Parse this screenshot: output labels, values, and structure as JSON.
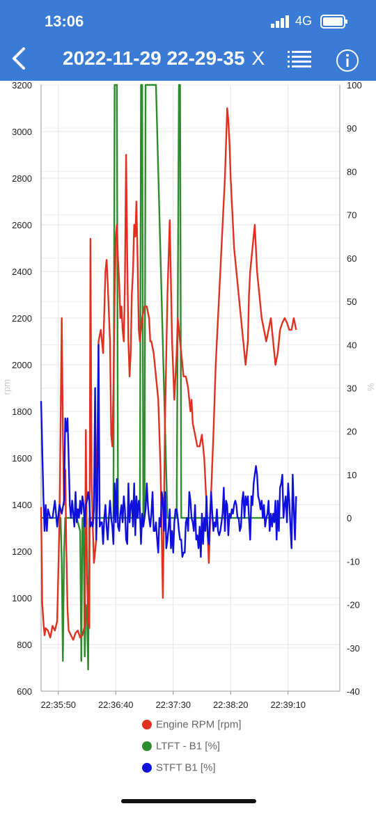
{
  "status_bar": {
    "time": "13:06",
    "network": "4G"
  },
  "header": {
    "title": "2022-11-29 22-29-35",
    "close_label": "X",
    "back_icon": "chevron-left-icon",
    "list_icon": "list-icon",
    "info_icon": "info-icon"
  },
  "colors": {
    "header": "#3a7bd5",
    "rpm": "#e03020",
    "ltft": "#2e8b2e",
    "stft": "#1010dd"
  },
  "chart_data": {
    "type": "line",
    "left_axis": {
      "label": "rpm",
      "range": [
        600,
        3200
      ],
      "ticks": [
        "600",
        "800",
        "1000",
        "1200",
        "1400",
        "1600",
        "1800",
        "2000",
        "2200",
        "2400",
        "2600",
        "2800",
        "3000",
        "3200"
      ]
    },
    "right_axis": {
      "label": "%",
      "range": [
        -40,
        100
      ],
      "ticks": [
        "-40",
        "-30",
        "-20",
        "-10",
        "0",
        "10",
        "20",
        "30",
        "40",
        "50",
        "60",
        "70",
        "80",
        "90",
        "100"
      ]
    },
    "x_axis": {
      "range_seconds": [
        0,
        260
      ],
      "tick_labels": [
        "22:35:50",
        "22:36:40",
        "22:37:30",
        "22:38:20",
        "22:39:10"
      ],
      "tick_seconds": [
        15,
        65,
        115,
        165,
        215
      ]
    },
    "grid": true,
    "legend_position": "bottom",
    "series": [
      {
        "name": "Engine RPM [rpm]",
        "axis": "left",
        "t": [
          0,
          1,
          2,
          3,
          4,
          6,
          8,
          10,
          12,
          14,
          16,
          18,
          19,
          20,
          21,
          22,
          23,
          24,
          26,
          28,
          30,
          32,
          34,
          36,
          38,
          39,
          40,
          41,
          42,
          43,
          44,
          45,
          46,
          47,
          48,
          50,
          52,
          54,
          56,
          57,
          58,
          60,
          61,
          62,
          63,
          64,
          65,
          66,
          67,
          68,
          69,
          70,
          71,
          72,
          73,
          74,
          75,
          76,
          77,
          78,
          79,
          80,
          81,
          82,
          83,
          84,
          85,
          86,
          88,
          90,
          92,
          94,
          95,
          96,
          98,
          100,
          102,
          104,
          106,
          108,
          110,
          112,
          114,
          116,
          118,
          119,
          120,
          121,
          122,
          124,
          126,
          128,
          130,
          131,
          132,
          134,
          136,
          138,
          140,
          142,
          144,
          146,
          148,
          150,
          152,
          154,
          156,
          158,
          160,
          162,
          163,
          164,
          165,
          166,
          167,
          168,
          169,
          170,
          172,
          174,
          176,
          178,
          180,
          181,
          182,
          184,
          186,
          188,
          190,
          192,
          194,
          196,
          198,
          200,
          202,
          204,
          206,
          208,
          210,
          212,
          214,
          216,
          218,
          220,
          222
        ],
        "v": [
          1390,
          980,
          900,
          840,
          870,
          860,
          830,
          880,
          860,
          900,
          1320,
          2200,
          1700,
          1400,
          1550,
          1200,
          950,
          860,
          840,
          820,
          850,
          860,
          830,
          840,
          880,
          1720,
          1100,
          900,
          870,
          2540,
          1500,
          1300,
          1150,
          1200,
          1250,
          2100,
          2150,
          2050,
          2400,
          2450,
          2350,
          2100,
          1700,
          1650,
          1900,
          2300,
          2550,
          2600,
          2450,
          2350,
          2200,
          2250,
          2150,
          2100,
          2350,
          2900,
          2450,
          2100,
          1950,
          2050,
          2300,
          2400,
          2600,
          2550,
          2700,
          2450,
          2150,
          2100,
          2200,
          2250,
          2250,
          2200,
          2100,
          2100,
          2050,
          1950,
          1850,
          1550,
          1000,
          1800,
          2300,
          2620,
          2100,
          1850,
          2050,
          2200,
          2150,
          2100,
          2050,
          1950,
          1950,
          1900,
          1800,
          1850,
          1750,
          1700,
          1650,
          1650,
          1700,
          1600,
          1400,
          1150,
          1450,
          1700,
          2000,
          2200,
          2400,
          2600,
          2800,
          3100,
          3050,
          2950,
          2800,
          2700,
          2600,
          2500,
          2450,
          2400,
          2300,
          2200,
          2100,
          2000,
          2100,
          2300,
          2400,
          2500,
          2600,
          2400,
          2300,
          2200,
          2150,
          2100,
          2150,
          2200,
          2100,
          2000,
          2050,
          2150,
          2180,
          2200,
          2180,
          2150,
          2150,
          2200,
          2150
        ]
      },
      {
        "name": "LTFT - B1 [%]",
        "axis": "right",
        "t": [
          0,
          17,
          18,
          19,
          20,
          21,
          22,
          27,
          30,
          31,
          33,
          34,
          35,
          36,
          37,
          38,
          39,
          40,
          41,
          42,
          45,
          46,
          47,
          49,
          50,
          51,
          52,
          53,
          54,
          55,
          62,
          63,
          64,
          65,
          66,
          67,
          68,
          69,
          70,
          71,
          72,
          73,
          74,
          75,
          76,
          77,
          78,
          79,
          80,
          84,
          85,
          86,
          87,
          88,
          89,
          90,
          91,
          100,
          110,
          118,
          120,
          121,
          122,
          130,
          140,
          150,
          155,
          158,
          160,
          161,
          162,
          163,
          164,
          165,
          166,
          167,
          170,
          171,
          172,
          173,
          174,
          175,
          176,
          177,
          178,
          179,
          180,
          188,
          189,
          190,
          191,
          192,
          193,
          194,
          195,
          196,
          197,
          198,
          199,
          200,
          201,
          202,
          203,
          204,
          205,
          206,
          207,
          208,
          209,
          210
        ],
        "v": [
          0,
          0,
          -10,
          -33,
          -8,
          0,
          0,
          0,
          0,
          0,
          -2,
          -3,
          -33,
          0,
          0,
          -32,
          -20,
          -22,
          -35,
          0,
          0,
          0,
          0,
          0,
          0,
          0,
          0,
          0,
          0,
          0,
          0,
          0,
          100,
          100,
          100,
          0,
          0,
          0,
          0,
          0,
          0,
          0,
          0,
          0,
          0,
          0,
          0,
          0,
          0,
          0,
          0,
          0,
          100,
          100,
          0,
          0,
          100,
          100,
          0,
          0,
          100,
          100,
          0,
          0,
          0,
          0,
          0,
          0,
          0,
          0,
          0,
          0,
          0,
          0,
          0,
          0,
          0,
          0,
          0,
          0,
          0,
          0,
          0,
          0,
          0,
          0,
          0,
          0,
          0,
          0,
          0,
          0,
          0,
          0,
          0,
          0,
          0,
          0,
          0,
          0,
          0,
          0,
          0,
          0,
          0,
          0,
          0,
          0,
          0,
          0,
          0,
          0,
          0,
          0
        ]
      },
      {
        "name": "STFT B1 [%]",
        "axis": "right",
        "t": [
          0,
          2,
          3,
          4,
          5,
          6,
          8,
          10,
          12,
          14,
          16,
          18,
          20,
          21,
          22,
          23,
          24,
          25,
          26,
          27,
          28,
          29,
          30,
          31,
          32,
          33,
          34,
          35,
          36,
          37,
          38,
          39,
          40,
          41,
          42,
          43,
          44,
          45,
          46,
          47,
          48,
          49,
          50,
          51,
          52,
          53,
          54,
          55,
          56,
          57,
          58,
          59,
          60,
          61,
          62,
          63,
          64,
          65,
          66,
          67,
          68,
          69,
          70,
          71,
          72,
          73,
          74,
          75,
          76,
          77,
          78,
          79,
          80,
          81,
          82,
          83,
          84,
          85,
          86,
          87,
          88,
          89,
          90,
          91,
          92,
          93,
          94,
          95,
          96,
          97,
          98,
          99,
          100,
          101,
          102,
          103,
          104,
          105,
          106,
          107,
          108,
          109,
          110,
          111,
          112,
          113,
          114,
          115,
          116,
          117,
          118,
          119,
          120,
          121,
          122,
          123,
          124,
          125,
          126,
          127,
          128,
          129,
          130,
          131,
          132,
          133,
          134,
          135,
          136,
          137,
          138,
          139,
          140,
          141,
          142,
          143,
          144,
          145,
          146,
          147,
          148,
          149,
          150,
          151,
          152,
          153,
          154,
          155,
          156,
          157,
          158,
          159,
          160,
          161,
          162,
          163,
          164,
          165,
          166,
          167,
          168,
          169,
          170,
          171,
          172,
          173,
          174,
          175,
          176,
          177,
          178,
          179,
          180,
          181,
          182,
          183,
          184,
          185,
          186,
          187,
          188,
          189,
          190,
          191,
          192,
          193,
          194,
          195,
          196,
          197,
          198,
          199,
          200,
          201,
          202,
          203,
          204,
          205,
          206,
          207,
          208,
          209,
          210,
          211,
          212,
          213,
          214,
          215,
          216,
          217,
          218,
          219,
          220,
          221,
          222
        ],
        "v": [
          27,
          5,
          -3,
          3,
          -3,
          2,
          0,
          0,
          4,
          -2,
          3,
          1,
          4,
          23,
          20,
          23,
          14,
          3,
          0,
          4,
          1,
          -2,
          6,
          -1,
          2,
          0,
          4,
          1,
          5,
          3,
          -2,
          3,
          4,
          6,
          4,
          -2,
          -1,
          -2,
          2,
          30,
          -5,
          4,
          40,
          -2,
          -1,
          -1,
          -6,
          0,
          3,
          -2,
          -5,
          0,
          4,
          0,
          -2,
          -6,
          8,
          -1,
          9,
          -2,
          -3,
          1,
          3,
          -1,
          5,
          2,
          -5,
          -6,
          8,
          -1,
          3,
          4,
          -2,
          8,
          -4,
          5,
          0,
          4,
          2,
          -6,
          1,
          -2,
          0,
          2,
          8,
          3,
          0,
          -2,
          1,
          6,
          -3,
          -3,
          -1,
          -5,
          -8,
          0,
          -2,
          6,
          4,
          -3,
          6,
          -7,
          -5,
          -2,
          2,
          -7,
          -3,
          -8,
          -1,
          2,
          2,
          0,
          -3,
          -5,
          -5,
          -9,
          -8,
          -8,
          -1,
          0,
          -3,
          6,
          4,
          0,
          -1,
          -3,
          3,
          -5,
          -4,
          -7,
          -2,
          -9,
          1,
          -6,
          0,
          -3,
          5,
          -4,
          -6,
          0,
          6,
          1,
          -3,
          -1,
          -2,
          2,
          -3,
          -4,
          -3,
          -1,
          1,
          7,
          -3,
          4,
          3,
          -4,
          1,
          0,
          2,
          1,
          3,
          4,
          3,
          0,
          0,
          -3,
          -2,
          4,
          6,
          0,
          5,
          3,
          5,
          0,
          -5,
          5,
          3,
          8,
          10,
          12,
          10,
          5,
          4,
          2,
          4,
          0,
          3,
          -2,
          0,
          1,
          4,
          -3,
          1,
          -2,
          1,
          -1,
          4,
          -5,
          4,
          -3,
          7,
          8,
          10,
          0,
          3,
          5,
          -1,
          8,
          4,
          -2,
          -7,
          10,
          2,
          -5,
          5,
          6,
          8,
          3,
          8,
          -1,
          -2,
          -1,
          -5
        ]
      }
    ]
  }
}
